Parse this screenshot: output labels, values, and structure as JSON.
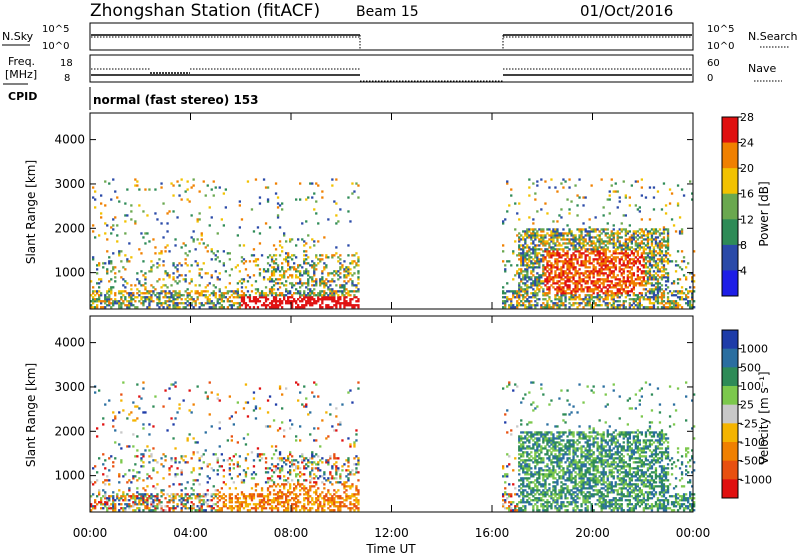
{
  "header": {
    "station_title": "Zhongshan Station (fitACF)",
    "beam": "Beam 15",
    "date": "01/Oct/2016"
  },
  "strip_nsky": {
    "left_label": "N.Sky",
    "left_ticks": [
      "10^5",
      "10^0"
    ],
    "right_ticks": [
      "10^5",
      "10^0"
    ],
    "right_label": "N.Search"
  },
  "strip_freq": {
    "left_label_1": "Freq.",
    "left_label_2": "[MHz]",
    "left_ticks": [
      "18",
      "8"
    ],
    "right_ticks": [
      "60",
      "0"
    ],
    "right_label": "Nave"
  },
  "cpid": {
    "label": "CPID",
    "mode": "normal (fast stereo) 153"
  },
  "x_axis": {
    "title": "Time UT",
    "ticks": [
      "00:00",
      "04:00",
      "08:00",
      "12:00",
      "16:00",
      "20:00",
      "00:00"
    ]
  },
  "chart_data": [
    {
      "type": "heatmap",
      "panel": "power",
      "ylabel": "Slant Range [km]",
      "yticks": [
        "1000",
        "2000",
        "3000",
        "4000"
      ],
      "ylim": [
        180,
        4600
      ],
      "xlim_hours": [
        0,
        24
      ],
      "colorbar_label": "Power [dB]",
      "colorbar_ticks": [
        "4",
        "8",
        "12",
        "16",
        "20",
        "24",
        "28"
      ],
      "colors": [
        "#1e1ee6",
        "#2a4aa8",
        "#2e8b57",
        "#6aa84f",
        "#f2c200",
        "#f08000",
        "#e01010"
      ],
      "echo_intervals_hours": [
        [
          0,
          10.7
        ],
        [
          16.4,
          24
        ]
      ]
    },
    {
      "type": "heatmap",
      "panel": "velocity",
      "ylabel": "Slant Range [km]",
      "yticks": [
        "1000",
        "2000",
        "3000",
        "4000"
      ],
      "ylim": [
        180,
        4600
      ],
      "xlim_hours": [
        0,
        24
      ],
      "colorbar_label": "Velocity [m s⁻¹]",
      "colorbar_ticks": [
        "1000",
        "500",
        "100",
        "25",
        "-25",
        "-100",
        "-500",
        "-1000"
      ],
      "colors": [
        "#1e3ca8",
        "#2a6ea0",
        "#2e8b57",
        "#7cc84c",
        "#c8c8c8",
        "#f4b400",
        "#f08000",
        "#e85010",
        "#e01010"
      ],
      "echo_intervals_hours": [
        [
          0,
          10.7
        ],
        [
          16.4,
          24
        ]
      ]
    }
  ]
}
